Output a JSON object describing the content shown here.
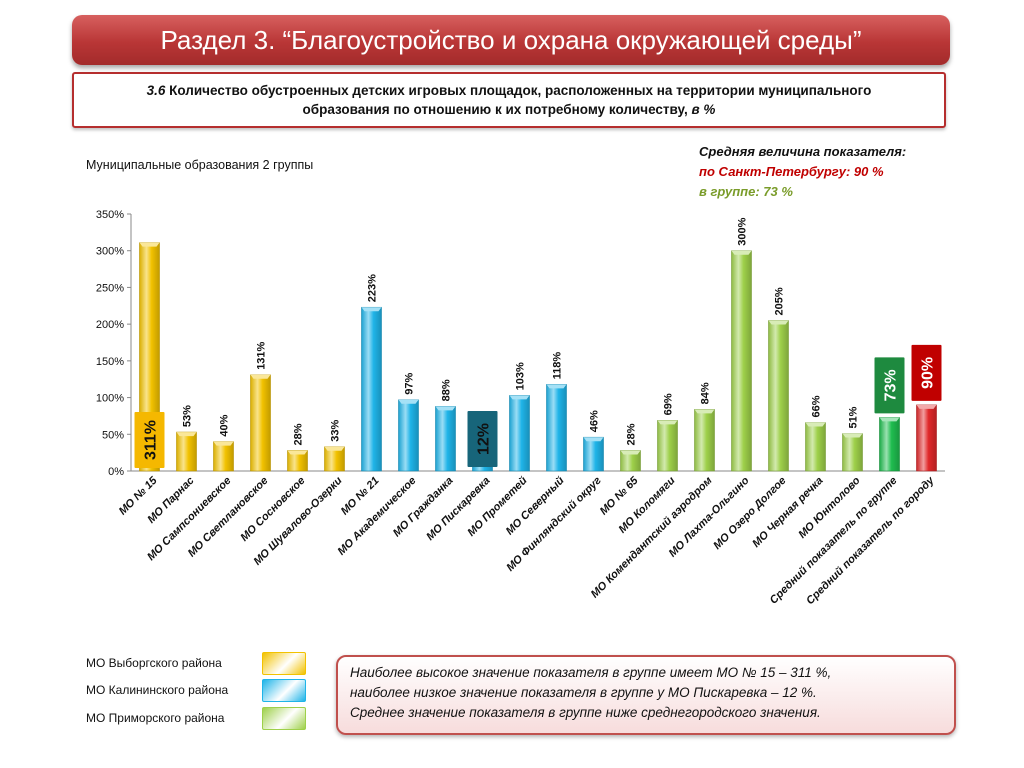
{
  "header": {
    "title": "Раздел 3. “Благоустройство и охрана окружающей среды”"
  },
  "subtitle": {
    "number": "3.6",
    "text": " Количество обустроенных детских игровых площадок, расположенных на территории муниципального образования по отношению к их потребному количеству, ",
    "unit": "в %"
  },
  "group_label": "Муниципальные образования 2 группы",
  "average": {
    "title": "Средняя величина показателя:",
    "spb": "по Санкт-Петербургу:  90 %",
    "group": "в группе:  73 %"
  },
  "chart_data": {
    "type": "bar",
    "ylim": [
      0,
      350
    ],
    "yticks": [
      "0%",
      "50%",
      "100%",
      "150%",
      "200%",
      "250%",
      "300%",
      "350%"
    ],
    "categories": [
      "МО № 15",
      "МО Парнас",
      "МО Сампсониевское",
      "МО Светлановское",
      "МО Сосновское",
      "МО Шувалово-Озерки",
      "МО № 21",
      "МО Академическое",
      "МО Гражданка",
      "МО Пискаревка",
      "МО Прометей",
      "МО Северный",
      "МО Финляндский округ",
      "МО № 65",
      "МО Коломяги",
      "МО Комендантский аэродром",
      "МО Лахта-Ольгино",
      "МО Озеро Долгое",
      "МО Черная речка",
      "МО Юнтолово",
      "Средний показатель по группе",
      "Средний показатель по городу"
    ],
    "values": [
      311,
      53,
      40,
      131,
      28,
      33,
      223,
      97,
      88,
      12,
      103,
      118,
      46,
      28,
      69,
      84,
      300,
      205,
      66,
      51,
      73,
      90
    ],
    "labels": [
      "311%",
      "53%",
      "40%",
      "131%",
      "28%",
      "33%",
      "223%",
      "97%",
      "88%",
      "12%",
      "103%",
      "118%",
      "46%",
      "28%",
      "69%",
      "84%",
      "300%",
      "205%",
      "66%",
      "51%",
      "73%",
      "90%"
    ],
    "groups": [
      "vyborg",
      "vyborg",
      "vyborg",
      "vyborg",
      "vyborg",
      "vyborg",
      "kalinin",
      "kalinin",
      "kalinin",
      "kalinin",
      "kalinin",
      "kalinin",
      "kalinin",
      "primorsky",
      "primorsky",
      "primorsky",
      "primorsky",
      "primorsky",
      "primorsky",
      "primorsky",
      "group_avg",
      "city_avg"
    ],
    "highlighted_labels": {
      "0": "#f5b800",
      "9": "#17657a",
      "20": "#1e8a3f",
      "21": "#c00000"
    },
    "colors": {
      "vyborg": "#f2c200",
      "kalinin": "#1fb4e8",
      "primorsky": "#9ed04a",
      "group_avg": "#1fbd4f",
      "city_avg": "#e0282a"
    },
    "grid": false
  },
  "legend": [
    {
      "label": "МО Выборгского района",
      "color": "#f2c200"
    },
    {
      "label": "МО Калининского района",
      "color": "#1fb4e8"
    },
    {
      "label": "МО Приморского района",
      "color": "#9ed04a"
    }
  ],
  "conclusion": {
    "line1": "Наиболее высокое значение показателя в группе имеет МО № 15 – 311 %,",
    "line2": "наиболее низкое значение показателя в группе у МО Пискаревка – 12 %.",
    "line3": "Среднее значение показателя в группе ниже среднегородского значения."
  }
}
